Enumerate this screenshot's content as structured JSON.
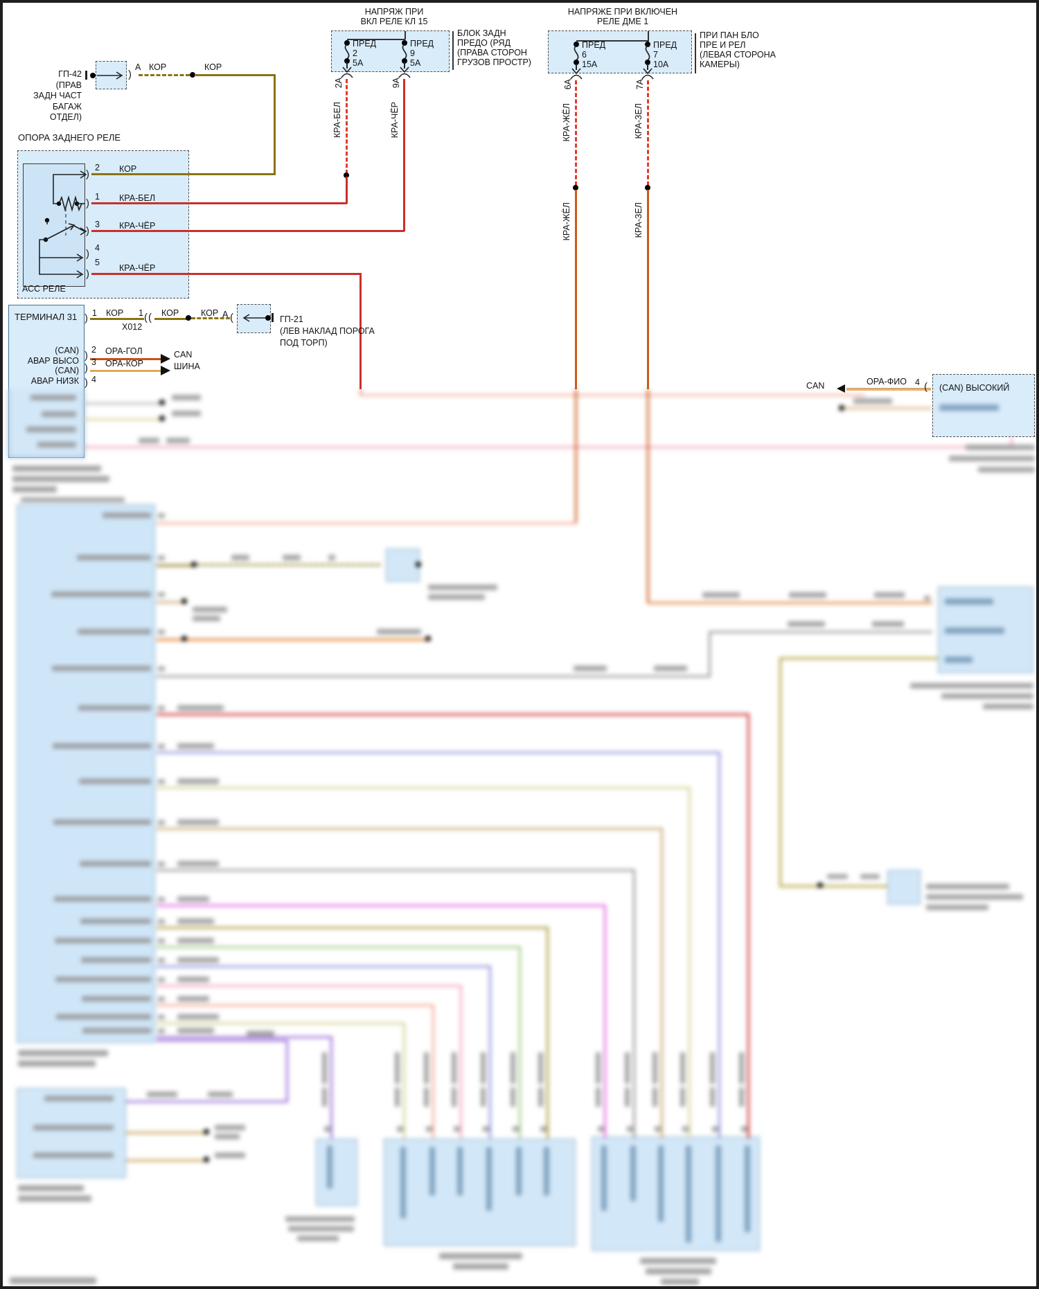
{
  "palette": {
    "box_fill": "#d9ecfa",
    "box_border_dashed": "#4c4c4c",
    "box_border_solid": "#7ba3c4",
    "wire_kor_brown": "#8a7411",
    "wire_kra_red": "#c9302c",
    "wire_fuse_dashed_red": "#e03c2c",
    "wire_kra_solid_orange": "#cd5a18",
    "wire_ora_gol": "#c94f16",
    "wire_ora_kor": "#e2a84f",
    "wire_ora_fio": "#e8b074",
    "wire_salmon": "#f2ac96",
    "wire_pink": "#f3a8bc",
    "wire_blue": "#9193dd",
    "wire_pale_olive": "#d3d39a",
    "wire_tan": "#c9a873",
    "wire_gray": "#9a9a9a",
    "wire_magenta": "#e36be3",
    "wire_olive": "#ad9f3e",
    "wire_green": "#a5cc84",
    "wire_purple": "#9b70d8",
    "text": "#141414"
  },
  "headers": {
    "left1": "НАПРЯЖ ПРИ",
    "left2": "ВКЛ РЕЛЕ КЛ 15",
    "right1": "НАПРЯЖЕ ПРИ ВКЛЮЧЕН",
    "right2": "РЕЛЕ ДМЕ 1"
  },
  "gp42": {
    "l1": "ГП-42",
    "l2": "(ПРАВ",
    "l3": "ЗАДН ЧАСТ",
    "l4": "БАГАЖ",
    "l5": "ОТДЕЛ)",
    "pin": "А",
    "kor1": "КОР",
    "kor2": "КОР"
  },
  "fusebox1": {
    "note1": "БЛОК ЗАДН",
    "note2": "ПРЕДО (РЯД",
    "note3": "(ПРАВА СТОРОН",
    "note4": "ГРУЗОВ ПРОСТР)",
    "f1": {
      "t": "ПРЕД",
      "n": "2",
      "a": "5А",
      "out": "2А",
      "wire": "КРА-БЕЛ"
    },
    "f2": {
      "t": "ПРЕД",
      "n": "9",
      "a": "5А",
      "out": "9А",
      "wire": "КРА-ЧЁР"
    }
  },
  "fusebox2": {
    "note1": "ПРИ ПАН БЛО",
    "note2": "ПРЕ И РЕЛ",
    "note3": "(ЛЕВАЯ СТОРОНА",
    "note4": "КАМЕРЫ)",
    "f1": {
      "t": "ПРЕД",
      "n": "6",
      "a": "15А",
      "out": "6А",
      "wire": "КРА-ЖЁЛ"
    },
    "f2": {
      "t": "ПРЕД",
      "n": "7",
      "a": "10А",
      "out": "7А",
      "wire": "КРА-ЗЕЛ"
    }
  },
  "relay": {
    "title": "ОПОРА ЗАДНЕГО РЕЛЕ",
    "name": "АСС РЕЛЕ",
    "p2": "2",
    "p1": "1",
    "p3": "3",
    "p4": "4",
    "p5": "5",
    "w2": "КОР",
    "w1": "КРА-БЕЛ",
    "w3": "КРА-ЧЁР",
    "w5": "КРА-ЧЁР"
  },
  "terminal31": {
    "title": "ТЕРМИНАЛ 31",
    "pin1": "1",
    "w1": "КОР",
    "x012": "Х012",
    "c1": "1",
    "w2": "КОР",
    "w3": "КОР",
    "a": "А"
  },
  "gp21": {
    "l1": "ГП-21",
    "l2": "(ЛЕВ НАКЛАД ПОРОГА",
    "l3": "ПОД ТОРП)"
  },
  "can_left": {
    "t1": "(CAN)",
    "t2": "АВАР ВЫСО",
    "t3": "(CAN)",
    "t4": "АВАР НИЗК",
    "p2": "2",
    "w2": "ОРА-ГОЛ",
    "p3": "3",
    "w3": "ОРА-КОР",
    "p4": "4",
    "bus1": "CAN",
    "bus2": "ШИНА"
  },
  "can_right": {
    "bus": "CAN",
    "wire": "ОРА-ФИО",
    "pin": "4",
    "row1": "(CAN) ВЫСОКИЙ"
  }
}
